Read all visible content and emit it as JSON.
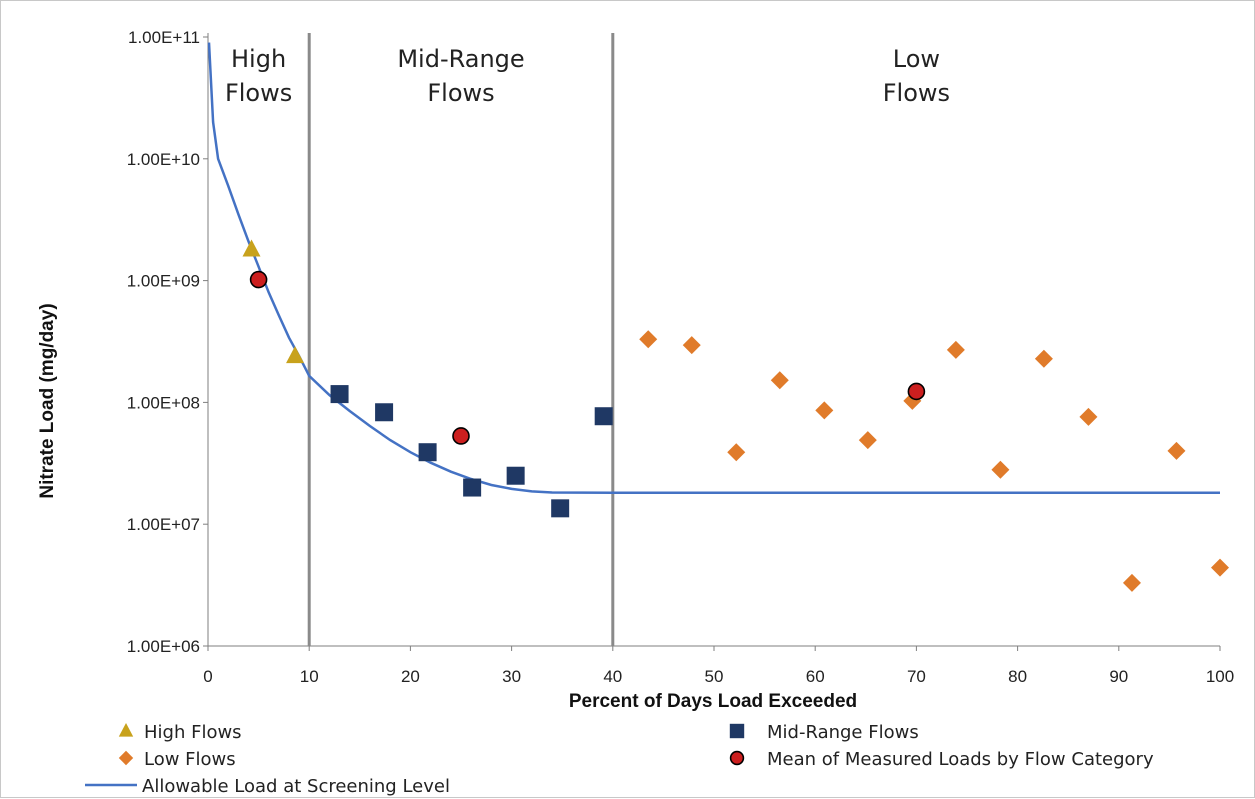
{
  "chart_data": {
    "type": "scatter",
    "xlabel": "Percent of Days Load Exceeded",
    "ylabel": "Nitrate Load (mg/day)",
    "xlim": [
      0,
      100
    ],
    "ylim": [
      1000000,
      100000000000
    ],
    "y_scale": "log",
    "x_ticks": [
      "0",
      "10",
      "20",
      "30",
      "40",
      "50",
      "60",
      "70",
      "80",
      "90",
      "100"
    ],
    "y_ticks": [
      {
        "value": 1000000,
        "label": "1.00E+06"
      },
      {
        "value": 10000000,
        "label": "1.00E+07"
      },
      {
        "value": 100000000,
        "label": "1.00E+08"
      },
      {
        "value": 1000000000,
        "label": "1.00E+09"
      },
      {
        "value": 10000000000,
        "label": "1.00E+10"
      },
      {
        "value": 100000000000,
        "label": "1.00E+11"
      }
    ],
    "regions": [
      {
        "lines": [
          "High",
          "Flows"
        ],
        "x_from": 0,
        "x_to": 10
      },
      {
        "lines": [
          "Mid-Range",
          "Flows"
        ],
        "x_from": 10,
        "x_to": 40
      },
      {
        "lines": [
          "Low",
          "Flows"
        ],
        "x_from": 40,
        "x_to": 100
      }
    ],
    "dividers": [
      10,
      40
    ],
    "grid": false,
    "legend_position": "bottom",
    "series": [
      {
        "name": "High Flows",
        "marker": "triangle",
        "color": "#c8a21c",
        "points": [
          [
            4.3,
            1800000000
          ],
          [
            8.6,
            240000000
          ]
        ]
      },
      {
        "name": "Mid-Range Flows",
        "marker": "square",
        "color": "#1f3864",
        "points": [
          [
            13,
            117000000
          ],
          [
            17.4,
            83000000
          ],
          [
            21.7,
            39000000
          ],
          [
            26.1,
            20000000
          ],
          [
            30.4,
            25000000
          ],
          [
            34.8,
            13500000
          ],
          [
            39.1,
            77000000
          ]
        ]
      },
      {
        "name": "Low Flows",
        "marker": "diamond",
        "color": "#e07b2a",
        "points": [
          [
            43.5,
            330000000
          ],
          [
            47.8,
            295000000
          ],
          [
            52.2,
            39000000
          ],
          [
            56.5,
            152000000
          ],
          [
            60.9,
            86000000
          ],
          [
            65.2,
            49000000
          ],
          [
            69.6,
            103000000
          ],
          [
            73.9,
            270000000
          ],
          [
            78.3,
            28000000
          ],
          [
            82.6,
            228000000
          ],
          [
            87,
            76000000
          ],
          [
            91.3,
            3300000
          ],
          [
            95.7,
            40000000
          ],
          [
            100,
            4400000
          ]
        ]
      },
      {
        "name": "Mean of Measured Loads by Flow Category",
        "marker": "circle",
        "color": "#cc1f1f",
        "points": [
          [
            5,
            1020000000
          ],
          [
            25,
            53000000
          ],
          [
            70,
            123000000
          ]
        ]
      },
      {
        "name": "Allowable Load at Screening Level",
        "marker": "line",
        "color": "#4472c4",
        "points": [
          [
            0.1,
            90000000000
          ],
          [
            0.5,
            20000000000
          ],
          [
            1,
            10000000000
          ],
          [
            2,
            6000000000
          ],
          [
            3,
            3500000000
          ],
          [
            4,
            2100000000
          ],
          [
            5,
            1300000000
          ],
          [
            6,
            800000000
          ],
          [
            7,
            520000000
          ],
          [
            8,
            340000000
          ],
          [
            9,
            240000000
          ],
          [
            10,
            165000000
          ],
          [
            12,
            115000000
          ],
          [
            14,
            85000000
          ],
          [
            16,
            64000000
          ],
          [
            18,
            49000000
          ],
          [
            20,
            39000000
          ],
          [
            22,
            32000000
          ],
          [
            24,
            27000000
          ],
          [
            26,
            23500000
          ],
          [
            28,
            21000000
          ],
          [
            30,
            19500000
          ],
          [
            32,
            18600000
          ],
          [
            34,
            18200000
          ],
          [
            40,
            18100000
          ],
          [
            100,
            18100000
          ]
        ]
      }
    ],
    "legend": [
      {
        "series": "High Flows",
        "label": "High Flows"
      },
      {
        "series": "Mid-Range Flows",
        "label": "Mid-Range Flows"
      },
      {
        "series": "Low Flows",
        "label": "Low Flows"
      },
      {
        "series": "Mean of Measured Loads by Flow Category",
        "label": "Mean of Measured Loads by Flow Category"
      },
      {
        "series": "Allowable Load at Screening Level",
        "label": "Allowable Load at Screening Level"
      }
    ]
  }
}
